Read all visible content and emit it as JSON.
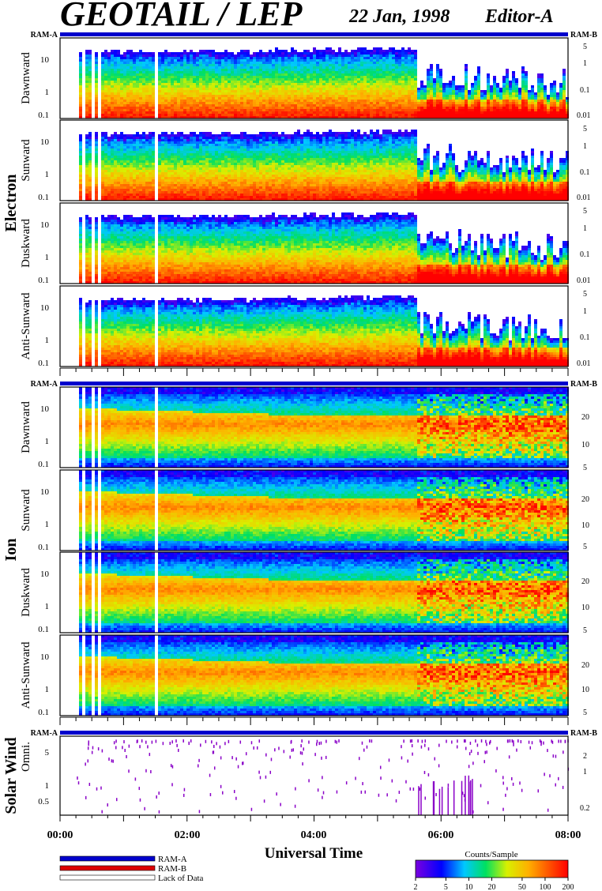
{
  "header": {
    "title": "GEOTAIL / LEP",
    "date": "22 Jan, 1998",
    "editor": "Editor-A"
  },
  "colors": {
    "ram_a": "#0000cc",
    "ram_b": "#dd0000",
    "lack_of_data": "#ffffff",
    "solar_wind_dots": "#8a00c8"
  },
  "chart_data": {
    "type": "heatmap",
    "xlabel": "Universal Time",
    "x_ticks": [
      "00:00",
      "02:00",
      "04:00",
      "06:00",
      "08:00"
    ],
    "x_range_hours": [
      0,
      8
    ],
    "mode_bar": {
      "left_label": "RAM-A",
      "right_label": "RAM-B"
    },
    "groups": [
      {
        "label": "Electron",
        "panels": [
          {
            "label": "Dawnward",
            "left_ticks": [
              "10",
              "1",
              "0.1"
            ],
            "right_ticks": [
              "5",
              "1",
              "0.1",
              "0.01"
            ]
          },
          {
            "label": "Sunward",
            "left_ticks": [
              "10",
              "1",
              "0.1"
            ],
            "right_ticks": [
              "5",
              "1",
              "0.1",
              "0.01"
            ]
          },
          {
            "label": "Duskward",
            "left_ticks": [
              "10",
              "1",
              "0.1"
            ],
            "right_ticks": [
              "5",
              "1",
              "0.1",
              "0.01"
            ]
          },
          {
            "label": "Anti-Sunward",
            "left_ticks": [
              "10",
              "1",
              "0.1"
            ],
            "right_ticks": [
              "5",
              "1",
              "0.1",
              "0.01"
            ]
          }
        ]
      },
      {
        "label": "Ion",
        "panels": [
          {
            "label": "Dawnward",
            "left_ticks": [
              "10",
              "1",
              "0.1"
            ],
            "right_ticks": [
              "20",
              "10",
              "5"
            ]
          },
          {
            "label": "Sunward",
            "left_ticks": [
              "10",
              "1",
              "0.1"
            ],
            "right_ticks": [
              "20",
              "10",
              "5"
            ]
          },
          {
            "label": "Duskward",
            "left_ticks": [
              "10",
              "1",
              "0.1"
            ],
            "right_ticks": [
              "20",
              "10",
              "5"
            ]
          },
          {
            "label": "Anti-Sunward",
            "left_ticks": [
              "10",
              "1",
              "0.1"
            ],
            "right_ticks": [
              "20",
              "10",
              "5"
            ]
          }
        ]
      },
      {
        "label": "Solar Wind",
        "panels": [
          {
            "label": "Omni.",
            "left_ticks": [
              "5",
              "1",
              "0.5"
            ],
            "right_ticks": [
              "2",
              "1",
              "0.2"
            ]
          }
        ]
      }
    ],
    "electron_profile": {
      "description_hours": [
        0.25,
        5.6,
        8.0
      ],
      "upper_cutoff": [
        10,
        10,
        1
      ],
      "lower_cutoff_red_onset_hour": 5.6
    },
    "data_gaps_hours": [
      0.36,
      0.5,
      0.61,
      1.48
    ],
    "colorbar": {
      "title": "Counts/Sample",
      "ticks": [
        "2",
        "5",
        "10",
        "20",
        "50",
        "100",
        "200"
      ],
      "range": [
        2,
        200
      ],
      "scale": "log"
    },
    "legend": [
      {
        "label": "RAM-A",
        "color": "#0000cc"
      },
      {
        "label": "RAM-B",
        "color": "#dd0000"
      },
      {
        "label": "Lack of Data",
        "color": "#ffffff"
      }
    ]
  }
}
